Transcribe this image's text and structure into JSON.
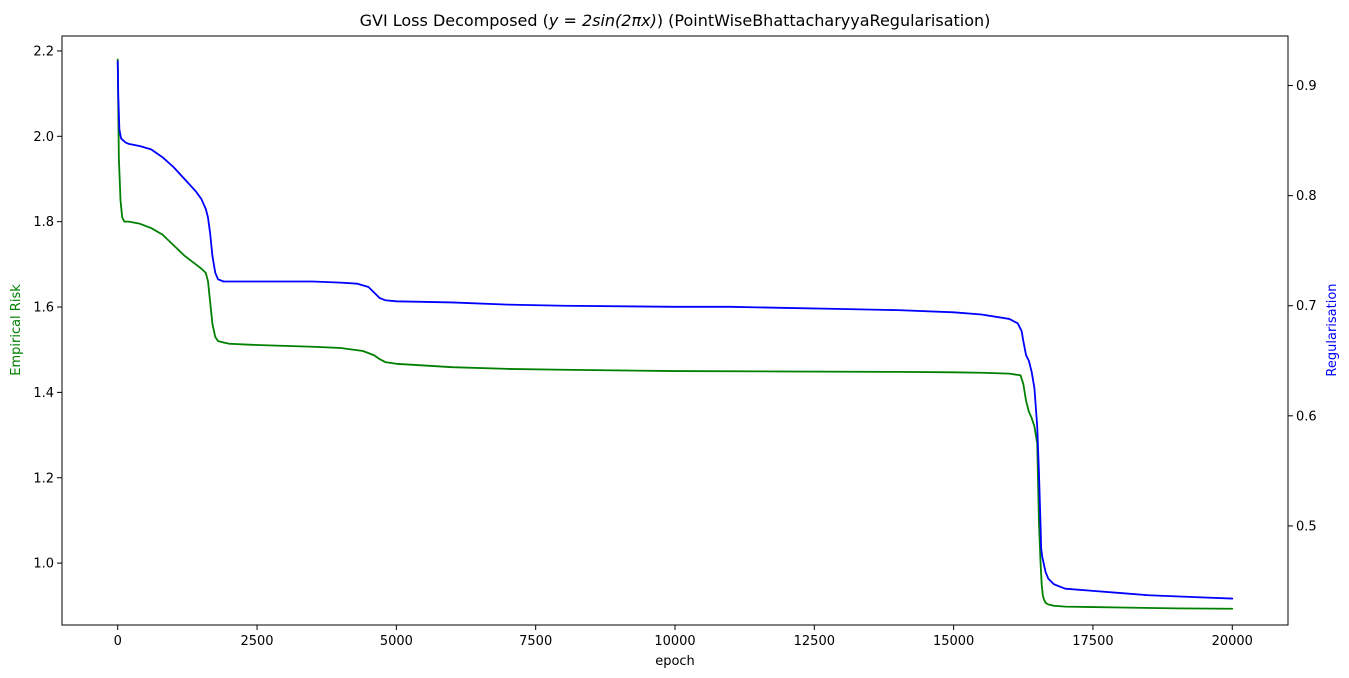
{
  "chart_data": {
    "type": "line",
    "title": "GVI Loss Decomposed ($y = 2\\sin(2\\pi x)$) (PointWiseBhattacharyyaRegularisation)",
    "title_parts": {
      "prefix": "GVI Loss Decomposed (",
      "math": "y = 2sin(2πx)",
      "suffix": ") (PointWiseBhattacharyyaRegularisation)"
    },
    "xlabel": "epoch",
    "ylabel_left": "Empirical Risk",
    "ylabel_right": "Regularisation",
    "xlim": [
      -1000,
      21000
    ],
    "ylim_left": [
      0.855,
      2.235
    ],
    "ylim_right": [
      0.41,
      0.945
    ],
    "x_ticks": [
      0,
      2500,
      5000,
      7500,
      10000,
      12500,
      15000,
      17500,
      20000
    ],
    "x_tick_labels": [
      "0",
      "2500",
      "5000",
      "7500",
      "10000",
      "12500",
      "15000",
      "17500",
      "20000"
    ],
    "y_left_ticks": [
      1.0,
      1.2,
      1.4,
      1.6,
      1.8,
      2.0,
      2.2
    ],
    "y_left_tick_labels": [
      "1.0",
      "1.2",
      "1.4",
      "1.6",
      "1.8",
      "2.0",
      "2.2"
    ],
    "y_right_ticks": [
      0.5,
      0.6,
      0.7,
      0.8,
      0.9
    ],
    "y_right_tick_labels": [
      "0.5",
      "0.6",
      "0.7",
      "0.8",
      "0.9"
    ],
    "grid": false,
    "legend": "none",
    "colors": {
      "left_axis": "#008000",
      "right_axis": "#0000ff"
    },
    "series": [
      {
        "axis": "left",
        "color": "#008000",
        "x": [
          0,
          20,
          50,
          80,
          120,
          200,
          400,
          600,
          800,
          1000,
          1200,
          1400,
          1500,
          1580,
          1620,
          1660,
          1700,
          1750,
          1800,
          1900,
          2000,
          2500,
          3000,
          3500,
          4000,
          4400,
          4600,
          4700,
          4800,
          5000,
          6000,
          7000,
          8000,
          10000,
          12000,
          14000,
          15000,
          15500,
          16000,
          16200,
          16250,
          16300,
          16350,
          16400,
          16450,
          16500,
          16530,
          16560,
          16580,
          16600,
          16620,
          16650,
          16700,
          16800,
          17000,
          17500,
          18000,
          19000,
          20000
        ],
        "y": [
          2.18,
          1.95,
          1.85,
          1.81,
          1.8,
          1.8,
          1.795,
          1.785,
          1.77,
          1.745,
          1.72,
          1.7,
          1.69,
          1.68,
          1.66,
          1.61,
          1.56,
          1.53,
          1.52,
          1.517,
          1.514,
          1.511,
          1.509,
          1.507,
          1.504,
          1.497,
          1.487,
          1.478,
          1.471,
          1.467,
          1.459,
          1.455,
          1.453,
          1.45,
          1.449,
          1.448,
          1.447,
          1.446,
          1.444,
          1.44,
          1.42,
          1.38,
          1.355,
          1.34,
          1.32,
          1.28,
          1.1,
          1.0,
          0.95,
          0.925,
          0.915,
          0.907,
          0.903,
          0.9,
          0.898,
          0.897,
          0.896,
          0.894,
          0.893
        ]
      },
      {
        "axis": "right",
        "color": "#0000ff",
        "x": [
          0,
          10,
          30,
          60,
          100,
          150,
          200,
          400,
          600,
          800,
          1000,
          1200,
          1400,
          1500,
          1580,
          1620,
          1660,
          1700,
          1750,
          1800,
          1900,
          2000,
          2500,
          3000,
          3500,
          4000,
          4300,
          4500,
          4600,
          4700,
          4800,
          5000,
          6000,
          7000,
          8000,
          10000,
          11000,
          12000,
          13000,
          14000,
          15000,
          15500,
          16000,
          16150,
          16220,
          16250,
          16300,
          16350,
          16400,
          16450,
          16500,
          16530,
          16560,
          16570,
          16590,
          16620,
          16650,
          16700,
          16800,
          17000,
          17500,
          18000,
          18500,
          19000,
          19500,
          20000
        ],
        "y": [
          0.922,
          0.89,
          0.86,
          0.852,
          0.85,
          0.848,
          0.847,
          0.845,
          0.842,
          0.835,
          0.826,
          0.815,
          0.804,
          0.797,
          0.788,
          0.78,
          0.765,
          0.745,
          0.73,
          0.724,
          0.722,
          0.722,
          0.722,
          0.722,
          0.722,
          0.721,
          0.72,
          0.717,
          0.712,
          0.707,
          0.705,
          0.704,
          0.703,
          0.701,
          0.7,
          0.699,
          0.699,
          0.698,
          0.697,
          0.696,
          0.694,
          0.692,
          0.688,
          0.684,
          0.677,
          0.668,
          0.655,
          0.65,
          0.64,
          0.625,
          0.59,
          0.55,
          0.5,
          0.48,
          0.472,
          0.465,
          0.458,
          0.452,
          0.447,
          0.443,
          0.441,
          0.439,
          0.437,
          0.436,
          0.435,
          0.434
        ]
      }
    ]
  }
}
